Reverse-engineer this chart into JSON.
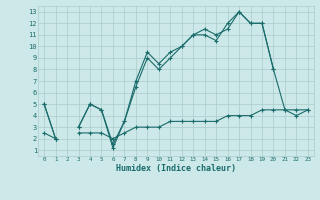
{
  "xlabel": "Humidex (Indice chaleur)",
  "bg_color": "#cce8e8",
  "grid_color": "#aacccc",
  "line_color": "#1a6b6b",
  "xlim": [
    -0.5,
    23.5
  ],
  "ylim": [
    0.5,
    13.5
  ],
  "xticks": [
    0,
    1,
    2,
    3,
    4,
    5,
    6,
    7,
    8,
    9,
    10,
    11,
    12,
    13,
    14,
    15,
    16,
    17,
    18,
    19,
    20,
    21,
    22,
    23
  ],
  "yticks": [
    1,
    2,
    3,
    4,
    5,
    6,
    7,
    8,
    9,
    10,
    11,
    12,
    13
  ],
  "line1_y": [
    5,
    2,
    null,
    3,
    5,
    4.5,
    1.2,
    3.5,
    6.5,
    9,
    8,
    9,
    10,
    11,
    11,
    10.5,
    12,
    13,
    12,
    12,
    8,
    null,
    null,
    null
  ],
  "line2_y": [
    5,
    2,
    null,
    3,
    5,
    4.5,
    1.5,
    3.5,
    7,
    9.5,
    8.5,
    9.5,
    10,
    11,
    11.5,
    11,
    11.5,
    13,
    12,
    12,
    8,
    4.5,
    4,
    4.5
  ],
  "line3_y": [
    2.5,
    2,
    null,
    2.5,
    2.5,
    2.5,
    2,
    2.5,
    3,
    3,
    3,
    3.5,
    3.5,
    3.5,
    3.5,
    3.5,
    4,
    4,
    4,
    4.5,
    4.5,
    4.5,
    4.5,
    4.5
  ]
}
